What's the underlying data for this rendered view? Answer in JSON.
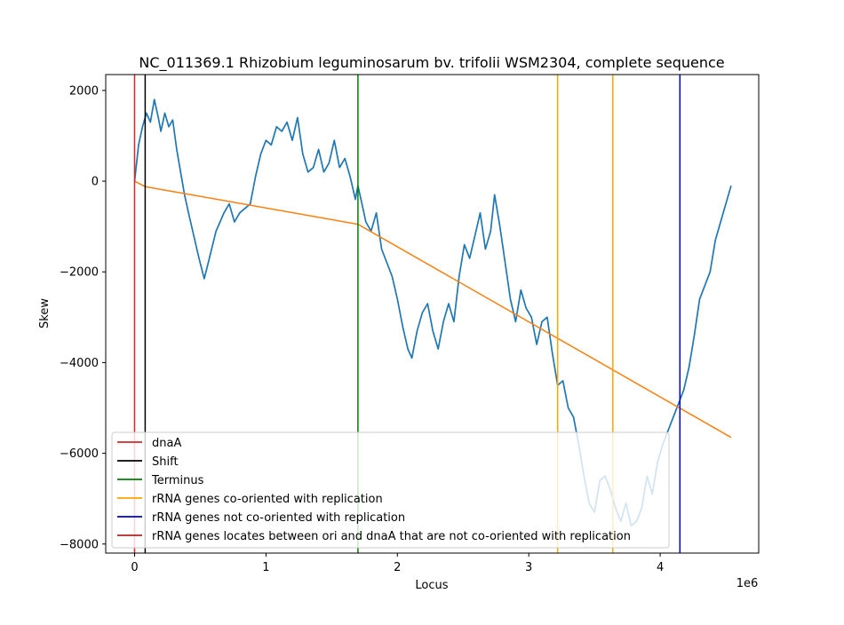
{
  "chart_data": {
    "type": "line",
    "title": "NC_011369.1 Rhizobium leguminosarum bv. trifolii WSM2304, complete sequence",
    "xlabel": "Locus",
    "ylabel": "Skew",
    "x_offset_label": "1e6",
    "xlim": [
      -220000,
      4750000
    ],
    "ylim": [
      -8200,
      2350
    ],
    "x_ticks": [
      0,
      1000000,
      2000000,
      3000000,
      4000000
    ],
    "x_tick_labels": [
      "0",
      "1",
      "2",
      "3",
      "4"
    ],
    "y_ticks": [
      2000,
      0,
      -2000,
      -4000,
      -6000,
      -8000
    ],
    "y_tick_labels": [
      "2000",
      "0",
      "−2000",
      "−4000",
      "−6000",
      "−8000"
    ],
    "grid": false,
    "legend_placement": "lower-left",
    "series": [
      {
        "key": "skew",
        "color": "#1f77b4",
        "x": [
          0,
          30000,
          60000,
          90000,
          120000,
          150000,
          180000,
          200000,
          230000,
          260000,
          290000,
          320000,
          350000,
          380000,
          410000,
          450000,
          490000,
          530000,
          560000,
          590000,
          620000,
          650000,
          680000,
          720000,
          760000,
          800000,
          840000,
          880000,
          920000,
          960000,
          1000000,
          1040000,
          1080000,
          1120000,
          1160000,
          1200000,
          1240000,
          1280000,
          1320000,
          1360000,
          1400000,
          1440000,
          1480000,
          1520000,
          1560000,
          1600000,
          1640000,
          1680000,
          1700000,
          1730000,
          1760000,
          1800000,
          1840000,
          1880000,
          1920000,
          1960000,
          2000000,
          2040000,
          2080000,
          2110000,
          2150000,
          2190000,
          2230000,
          2270000,
          2310000,
          2350000,
          2390000,
          2430000,
          2470000,
          2510000,
          2550000,
          2590000,
          2630000,
          2670000,
          2710000,
          2740000,
          2780000,
          2820000,
          2860000,
          2900000,
          2940000,
          2980000,
          3020000,
          3060000,
          3100000,
          3140000,
          3180000,
          3220000,
          3260000,
          3300000,
          3340000,
          3380000,
          3420000,
          3460000,
          3500000,
          3540000,
          3580000,
          3620000,
          3660000,
          3700000,
          3740000,
          3780000,
          3820000,
          3860000,
          3900000,
          3940000,
          3980000,
          4020000,
          4060000,
          4100000,
          4140000,
          4180000,
          4220000,
          4260000,
          4300000,
          4340000,
          4380000,
          4420000,
          4460000,
          4500000,
          4540000
        ],
        "y": [
          0,
          800,
          1200,
          1500,
          1300,
          1800,
          1400,
          1100,
          1500,
          1200,
          1350,
          700,
          200,
          -300,
          -700,
          -1200,
          -1700,
          -2150,
          -1800,
          -1450,
          -1100,
          -900,
          -700,
          -500,
          -900,
          -700,
          -600,
          -500,
          100,
          600,
          900,
          800,
          1200,
          1100,
          1300,
          900,
          1400,
          600,
          200,
          300,
          700,
          200,
          400,
          900,
          300,
          500,
          100,
          -400,
          -100,
          -500,
          -900,
          -1100,
          -700,
          -1500,
          -1800,
          -2100,
          -2600,
          -3200,
          -3700,
          -3900,
          -3300,
          -2900,
          -2700,
          -3300,
          -3700,
          -3100,
          -2700,
          -3100,
          -2100,
          -1400,
          -1700,
          -1200,
          -700,
          -1500,
          -1100,
          -300,
          -1000,
          -1800,
          -2600,
          -3100,
          -2400,
          -2800,
          -3000,
          -3600,
          -3100,
          -3000,
          -3800,
          -4500,
          -4400,
          -5000,
          -5200,
          -5800,
          -6500,
          -7100,
          -7300,
          -6600,
          -6500,
          -6800,
          -7200,
          -7500,
          -7100,
          -7600,
          -7500,
          -7200,
          -6500,
          -6900,
          -6200,
          -5800,
          -5500,
          -5200,
          -4900,
          -4600,
          -4100,
          -3400,
          -2600,
          -2300,
          -2000,
          -1300,
          -900,
          -500,
          -100
        ],
        "line_width": 1.7,
        "in_legend": false
      },
      {
        "key": "trend",
        "color": "#ff7f0e",
        "x": [
          0,
          80000,
          1700000,
          4540000
        ],
        "y": [
          0,
          -120,
          -950,
          -5650
        ],
        "line_width": 1.5,
        "in_legend": false
      }
    ],
    "vlines": [
      {
        "x": 0,
        "color": "#d62728"
      },
      {
        "x": 80000,
        "color": "#000000"
      },
      {
        "x": 1700000,
        "color": "#008000"
      },
      {
        "x": 3220000,
        "color": "#ffa500"
      },
      {
        "x": 3640000,
        "color": "#ffa500"
      },
      {
        "x": 4150000,
        "color": "#0000cc"
      }
    ],
    "legend": [
      {
        "label": "dnaA",
        "color": "#d62728"
      },
      {
        "label": "Shift",
        "color": "#000000"
      },
      {
        "label": "Terminus",
        "color": "#008000"
      },
      {
        "label": "rRNA genes co-oriented with replication",
        "color": "#ffa500"
      },
      {
        "label": "rRNA genes not co-oriented with replication",
        "color": "#0000cc"
      },
      {
        "label": "rRNA genes locates between ori and dnaA that are not co-oriented with replication",
        "color": "#b22222"
      }
    ]
  }
}
